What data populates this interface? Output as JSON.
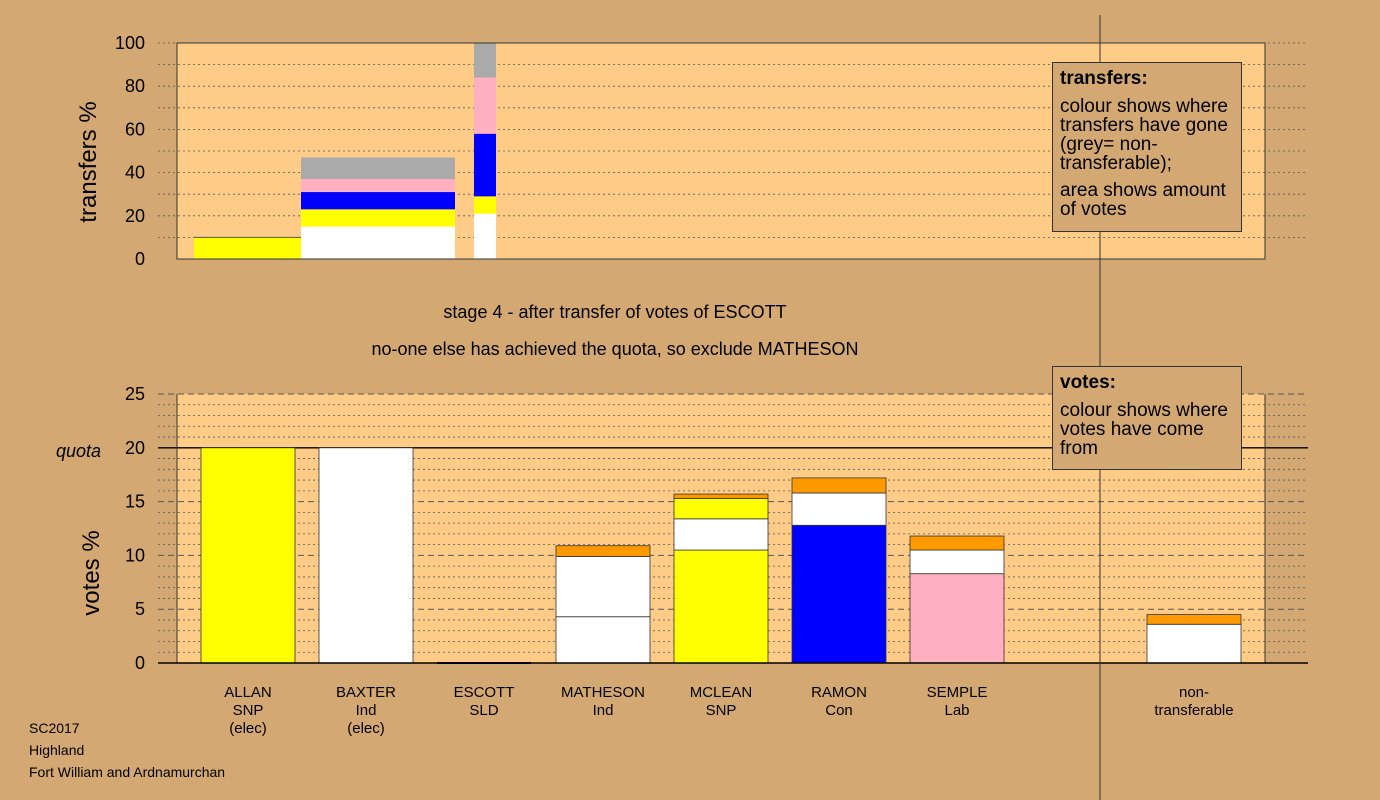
{
  "stage_line": "stage 4 - after transfer of votes of ESCOTT",
  "exclude_line": "no-one else has achieved the quota, so exclude MATHESON",
  "legend_transfers": {
    "title": "transfers:",
    "p1": "colour shows where transfers have gone (grey= non-transferable);",
    "p2": "area shows amount of votes"
  },
  "legend_votes": {
    "title": "votes:",
    "p1": "colour shows where votes have come from"
  },
  "footer": [
    "SC2017",
    "Highland",
    "Fort William and Ardnamurchan"
  ],
  "colors": {
    "background": "#d4a872",
    "plot": "#ffcc88",
    "SNP": "#ffff00",
    "Ind": "#ffffff",
    "Con": "#0000ff",
    "Lab": "#ffb0c0",
    "SLD": "#ff9900",
    "nontransferable": "#aaaaaa"
  },
  "chart_data": [
    {
      "type": "bar",
      "id": "transfers",
      "ylabel": "transfers %",
      "ylim": [
        0,
        100
      ],
      "yticks": [
        0,
        20,
        40,
        60,
        80,
        100
      ],
      "grid": true,
      "stacks": [
        {
          "slot": 0,
          "width_share": 0.04,
          "segments": [
            {
              "color": "SNP",
              "from": 0,
              "to": 10
            }
          ]
        },
        {
          "slot": 1,
          "width_share": 0.06,
          "segments": [
            {
              "color": "Ind",
              "from": 0,
              "to": 15
            },
            {
              "color": "SNP",
              "from": 15,
              "to": 23
            },
            {
              "color": "Con",
              "from": 23,
              "to": 31
            },
            {
              "color": "Lab",
              "from": 31,
              "to": 37
            },
            {
              "color": "nontransferable",
              "from": 37,
              "to": 47
            }
          ]
        },
        {
          "slot": 2,
          "width_share": 0.01,
          "segments": [
            {
              "color": "Ind",
              "from": 0,
              "to": 21
            },
            {
              "color": "SNP",
              "from": 21,
              "to": 29
            },
            {
              "color": "Con",
              "from": 29,
              "to": 58
            },
            {
              "color": "Lab",
              "from": 58,
              "to": 84
            },
            {
              "color": "nontransferable",
              "from": 84,
              "to": 100
            }
          ]
        }
      ]
    },
    {
      "type": "bar",
      "id": "votes",
      "ylabel": "votes %",
      "ylim": [
        0,
        25
      ],
      "yticks": [
        0,
        5,
        10,
        15,
        20,
        25
      ],
      "quota": 20,
      "quota_label": "quota",
      "grid": true,
      "candidates": [
        {
          "name": "ALLAN",
          "party": "SNP",
          "note": "(elec)",
          "segments": [
            {
              "color": "SNP",
              "value": 20
            }
          ]
        },
        {
          "name": "BAXTER",
          "party": "Ind",
          "note": "(elec)",
          "segments": [
            {
              "color": "Ind",
              "value": 20
            }
          ]
        },
        {
          "name": "ESCOTT",
          "party": "SLD",
          "note": "",
          "segments": []
        },
        {
          "name": "MATHESON",
          "party": "Ind",
          "note": "",
          "segments": [
            {
              "color": "Ind",
              "value": 4.3
            },
            {
              "color": "Ind",
              "value": 5.6
            },
            {
              "color": "SLD",
              "value": 1.0
            }
          ]
        },
        {
          "name": "MCLEAN",
          "party": "SNP",
          "note": "",
          "segments": [
            {
              "color": "SNP",
              "value": 10.5
            },
            {
              "color": "Ind",
              "value": 2.9
            },
            {
              "color": "SNP",
              "value": 1.9
            },
            {
              "color": "SLD",
              "value": 0.4
            }
          ]
        },
        {
          "name": "RAMON",
          "party": "Con",
          "note": "",
          "segments": [
            {
              "color": "Con",
              "value": 12.8
            },
            {
              "color": "Ind",
              "value": 3.0
            },
            {
              "color": "SLD",
              "value": 1.4
            }
          ]
        },
        {
          "name": "SEMPLE",
          "party": "Lab",
          "note": "",
          "segments": [
            {
              "color": "Lab",
              "value": 8.3
            },
            {
              "color": "Ind",
              "value": 2.2
            },
            {
              "color": "SLD",
              "value": 1.3
            }
          ]
        },
        {
          "name": "non-",
          "party": "transferable",
          "note": "",
          "segments": [
            {
              "color": "Ind",
              "value": 3.6
            },
            {
              "color": "SLD",
              "value": 0.9
            }
          ]
        }
      ]
    }
  ]
}
